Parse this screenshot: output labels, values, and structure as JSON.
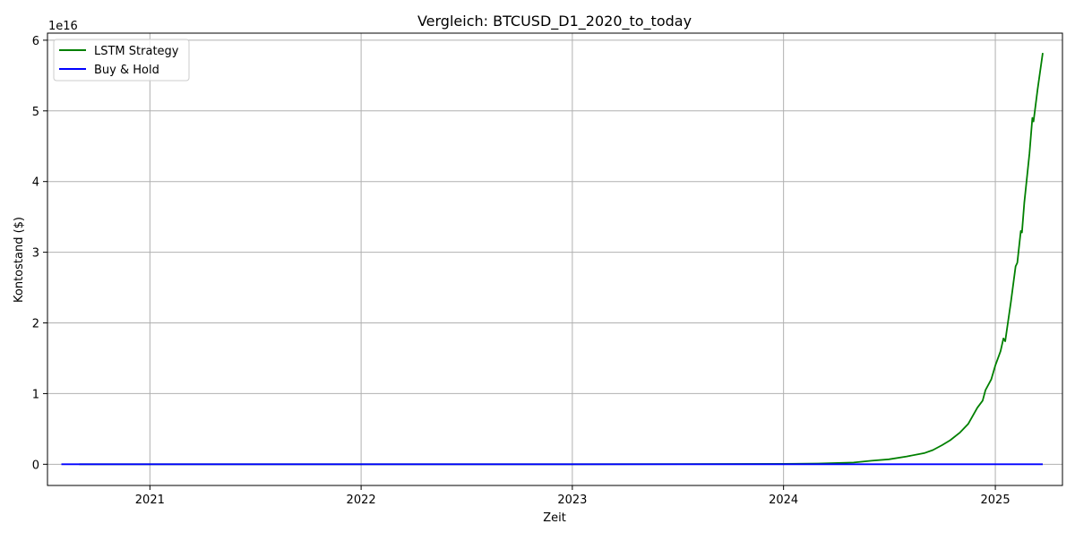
{
  "chart_data": {
    "type": "line",
    "title": "Vergleich: BTCUSD_D1_2020_to_today",
    "xlabel": "Zeit",
    "ylabel": "Kontostand ($)",
    "y_offset_label": "1e16",
    "y_scale_factor": 1e+16,
    "xlim": [
      "2020-07-08",
      "2025-04-27"
    ],
    "ylim": [
      -3000000000000000.0,
      6.1e+16
    ],
    "x_ticks": [
      {
        "date": "2021-01-01",
        "label": "2021"
      },
      {
        "date": "2022-01-01",
        "label": "2022"
      },
      {
        "date": "2023-01-01",
        "label": "2023"
      },
      {
        "date": "2024-01-01",
        "label": "2024"
      },
      {
        "date": "2025-01-01",
        "label": "2025"
      }
    ],
    "y_ticks": [
      {
        "value": 0,
        "label": "0"
      },
      {
        "value": 1e+16,
        "label": "1"
      },
      {
        "value": 2e+16,
        "label": "2"
      },
      {
        "value": 3e+16,
        "label": "3"
      },
      {
        "value": 4e+16,
        "label": "4"
      },
      {
        "value": 5e+16,
        "label": "5"
      },
      {
        "value": 6e+16,
        "label": "6"
      }
    ],
    "grid": true,
    "legend_position": "top-left",
    "series": [
      {
        "name": "LSTM Strategy",
        "color": "#008000",
        "points": [
          {
            "x": "2020-09-01",
            "y": 0
          },
          {
            "x": "2023-01-01",
            "y": 0
          },
          {
            "x": "2024-01-01",
            "y": 50000000000000.0
          },
          {
            "x": "2024-03-01",
            "y": 100000000000000.0
          },
          {
            "x": "2024-05-01",
            "y": 250000000000000.0
          },
          {
            "x": "2024-06-01",
            "y": 500000000000000.0
          },
          {
            "x": "2024-07-01",
            "y": 700000000000000.0
          },
          {
            "x": "2024-08-01",
            "y": 1100000000000000.0
          },
          {
            "x": "2024-09-01",
            "y": 1600000000000000.0
          },
          {
            "x": "2024-09-15",
            "y": 2000000000000000.0
          },
          {
            "x": "2024-10-01",
            "y": 2700000000000000.0
          },
          {
            "x": "2024-10-15",
            "y": 3400000000000000.0
          },
          {
            "x": "2024-11-01",
            "y": 4500000000000000.0
          },
          {
            "x": "2024-11-15",
            "y": 5700000000000000.0
          },
          {
            "x": "2024-12-01",
            "y": 8000000000000000.0
          },
          {
            "x": "2024-12-10",
            "y": 9000000000000000.0
          },
          {
            "x": "2024-12-15",
            "y": 1.05e+16
          },
          {
            "x": "2024-12-25",
            "y": 1.2e+16
          },
          {
            "x": "2025-01-01",
            "y": 1.4e+16
          },
          {
            "x": "2025-01-10",
            "y": 1.6e+16
          },
          {
            "x": "2025-01-15",
            "y": 1.78e+16
          },
          {
            "x": "2025-01-18",
            "y": 1.74e+16
          },
          {
            "x": "2025-01-28",
            "y": 2.3e+16
          },
          {
            "x": "2025-02-05",
            "y": 2.8e+16
          },
          {
            "x": "2025-02-08",
            "y": 2.85e+16
          },
          {
            "x": "2025-02-14",
            "y": 3.3e+16
          },
          {
            "x": "2025-02-16",
            "y": 3.28e+16
          },
          {
            "x": "2025-02-20",
            "y": 3.7e+16
          },
          {
            "x": "2025-03-01",
            "y": 4.4e+16
          },
          {
            "x": "2025-03-06",
            "y": 4.9e+16
          },
          {
            "x": "2025-03-08",
            "y": 4.85e+16
          },
          {
            "x": "2025-03-15",
            "y": 5.3e+16
          },
          {
            "x": "2025-03-24",
            "y": 5.82e+16
          }
        ]
      },
      {
        "name": "Buy & Hold",
        "color": "#0000ff",
        "points": [
          {
            "x": "2020-08-01",
            "y": 0
          },
          {
            "x": "2025-03-24",
            "y": 0
          }
        ]
      }
    ]
  }
}
